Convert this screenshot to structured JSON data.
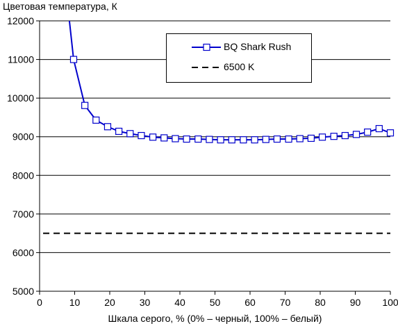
{
  "chart_data": {
    "type": "line",
    "ylabel": "Цветовая температура, К",
    "xlabel": "Шкала серого, % (0% – черный, 100% – белый)",
    "xlim": [
      0,
      100
    ],
    "ylim": [
      5000,
      12000
    ],
    "x_ticks": [
      "0",
      "10",
      "20",
      "30",
      "40",
      "50",
      "60",
      "70",
      "80",
      "90",
      "100"
    ],
    "y_ticks": [
      "5000",
      "6000",
      "7000",
      "8000",
      "9000",
      "10000",
      "11000",
      "12000"
    ],
    "grid": "horizontal",
    "legend_position": "top-right",
    "series": [
      {
        "name": "BQ Shark Rush",
        "style": "solid-square-markers",
        "color": "#0000cc",
        "line_start": {
          "x": 8.5,
          "y": 12000
        },
        "points": [
          {
            "x": 9.7,
            "y": 11000
          },
          {
            "x": 12.9,
            "y": 9810
          },
          {
            "x": 16.1,
            "y": 9430
          },
          {
            "x": 19.4,
            "y": 9260
          },
          {
            "x": 22.6,
            "y": 9140
          },
          {
            "x": 25.8,
            "y": 9080
          },
          {
            "x": 29.0,
            "y": 9030
          },
          {
            "x": 32.3,
            "y": 8990
          },
          {
            "x": 35.5,
            "y": 8970
          },
          {
            "x": 38.7,
            "y": 8950
          },
          {
            "x": 41.9,
            "y": 8940
          },
          {
            "x": 45.2,
            "y": 8940
          },
          {
            "x": 48.4,
            "y": 8930
          },
          {
            "x": 51.6,
            "y": 8920
          },
          {
            "x": 54.8,
            "y": 8920
          },
          {
            "x": 58.1,
            "y": 8920
          },
          {
            "x": 61.3,
            "y": 8920
          },
          {
            "x": 64.5,
            "y": 8930
          },
          {
            "x": 67.7,
            "y": 8940
          },
          {
            "x": 71.0,
            "y": 8940
          },
          {
            "x": 74.2,
            "y": 8950
          },
          {
            "x": 77.4,
            "y": 8960
          },
          {
            "x": 80.6,
            "y": 8990
          },
          {
            "x": 83.9,
            "y": 9010
          },
          {
            "x": 87.1,
            "y": 9030
          },
          {
            "x": 90.3,
            "y": 9060
          },
          {
            "x": 93.5,
            "y": 9120
          },
          {
            "x": 96.8,
            "y": 9210
          },
          {
            "x": 100,
            "y": 9100
          }
        ]
      },
      {
        "name": "6500 K",
        "style": "dashed",
        "color": "#000000",
        "points": [
          {
            "x": 1,
            "y": 6500
          },
          {
            "x": 100,
            "y": 6500
          }
        ]
      }
    ]
  }
}
